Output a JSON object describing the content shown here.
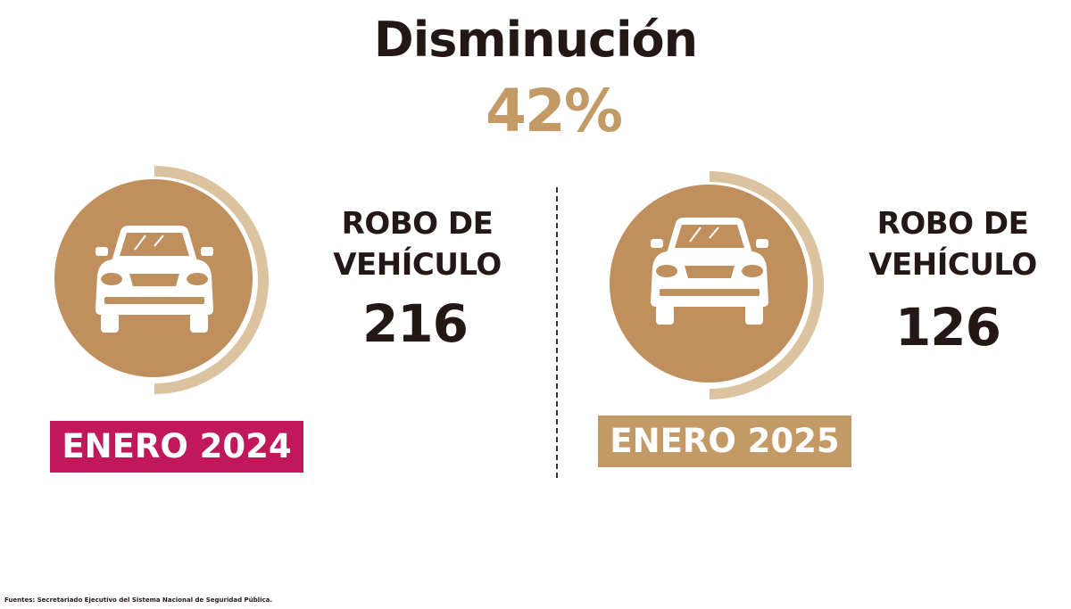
{
  "header": {
    "title": "Disminución",
    "percent": "42%"
  },
  "panels": [
    {
      "metric_line1": "ROBO DE",
      "metric_line2": "VEHÍCULO",
      "count": "216",
      "period": "ENERO 2024",
      "period_color": "#c0185a",
      "icon": "car-icon"
    },
    {
      "metric_line1": "ROBO DE",
      "metric_line2": "VEHÍCULO",
      "count": "126",
      "period": "ENERO 2025",
      "period_color": "#c39a66",
      "icon": "car-icon"
    }
  ],
  "colors": {
    "circle": "#c08f5e",
    "arc": "#dcc3a0",
    "accent": "#c39a66",
    "text": "#231815"
  },
  "footer": {
    "source": "Fuentes: Secretariado Ejecutivo del Sistema Nacional de Seguridad Pública."
  }
}
